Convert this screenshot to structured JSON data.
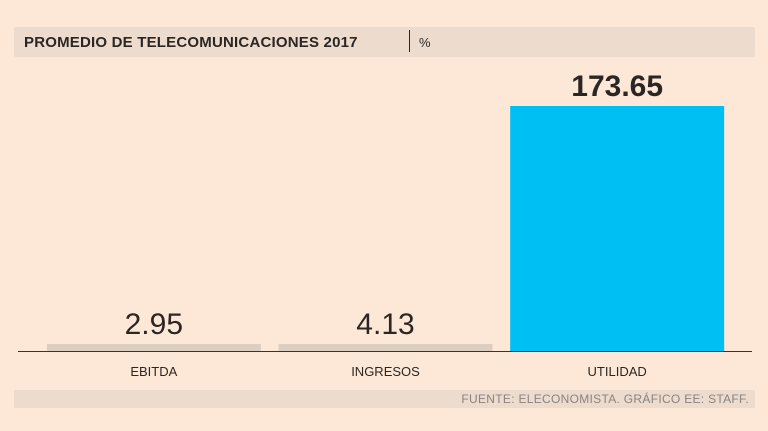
{
  "header": {
    "title": "PROMEDIO DE TELECOMUNICACIONES 2017",
    "unit": "%"
  },
  "chart_data": {
    "type": "bar",
    "title": "PROMEDIO DE TELECOMUNICACIONES 2017",
    "unit": "%",
    "categories": [
      "EBITDA",
      "INGRESOS",
      "UTILIDAD"
    ],
    "values": [
      2.95,
      4.13,
      173.65
    ],
    "value_labels": [
      "2.95",
      "4.13",
      "173.65"
    ],
    "highlight_index": 2,
    "ylim": [
      0,
      173.65
    ],
    "xlabel": "",
    "ylabel": "",
    "grid": false
  },
  "colors": {
    "highlight": "#00bff3",
    "muted": "#ddcec2",
    "axis": "#3a3430"
  },
  "footer": {
    "source": "FUENTE: ELECONOMISTA. GRÁFICO EE: STAFF."
  }
}
